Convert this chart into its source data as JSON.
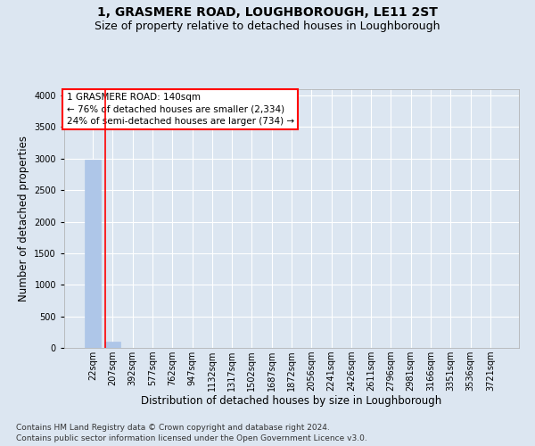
{
  "title": "1, GRASMERE ROAD, LOUGHBOROUGH, LE11 2ST",
  "subtitle": "Size of property relative to detached houses in Loughborough",
  "xlabel": "Distribution of detached houses by size in Loughborough",
  "ylabel": "Number of detached properties",
  "footer_line1": "Contains HM Land Registry data © Crown copyright and database right 2024.",
  "footer_line2": "Contains public sector information licensed under the Open Government Licence v3.0.",
  "categories": [
    "22sqm",
    "207sqm",
    "392sqm",
    "577sqm",
    "762sqm",
    "947sqm",
    "1132sqm",
    "1317sqm",
    "1502sqm",
    "1687sqm",
    "1872sqm",
    "2056sqm",
    "2241sqm",
    "2426sqm",
    "2611sqm",
    "2796sqm",
    "2981sqm",
    "3166sqm",
    "3351sqm",
    "3536sqm",
    "3721sqm"
  ],
  "bar_values": [
    2990,
    105,
    5,
    2,
    1,
    1,
    1,
    0,
    0,
    0,
    0,
    0,
    0,
    0,
    0,
    0,
    0,
    0,
    0,
    0,
    0
  ],
  "bar_color": "#aec6e8",
  "bar_edge_color": "#aec6e8",
  "background_color": "#dce6f1",
  "plot_bg_color": "#dce6f1",
  "gridcolor": "#ffffff",
  "ylim": [
    0,
    4100
  ],
  "yticks": [
    0,
    500,
    1000,
    1500,
    2000,
    2500,
    3000,
    3500,
    4000
  ],
  "red_line_x": 0.62,
  "annotation_text": "1 GRASMERE ROAD: 140sqm\n← 76% of detached houses are smaller (2,334)\n24% of semi-detached houses are larger (734) →",
  "annotation_box_color": "#ffffff",
  "annotation_border_color": "red",
  "title_fontsize": 10,
  "subtitle_fontsize": 9,
  "xlabel_fontsize": 8.5,
  "ylabel_fontsize": 8.5,
  "tick_fontsize": 7,
  "footer_fontsize": 6.5,
  "annotation_fontsize": 7.5
}
